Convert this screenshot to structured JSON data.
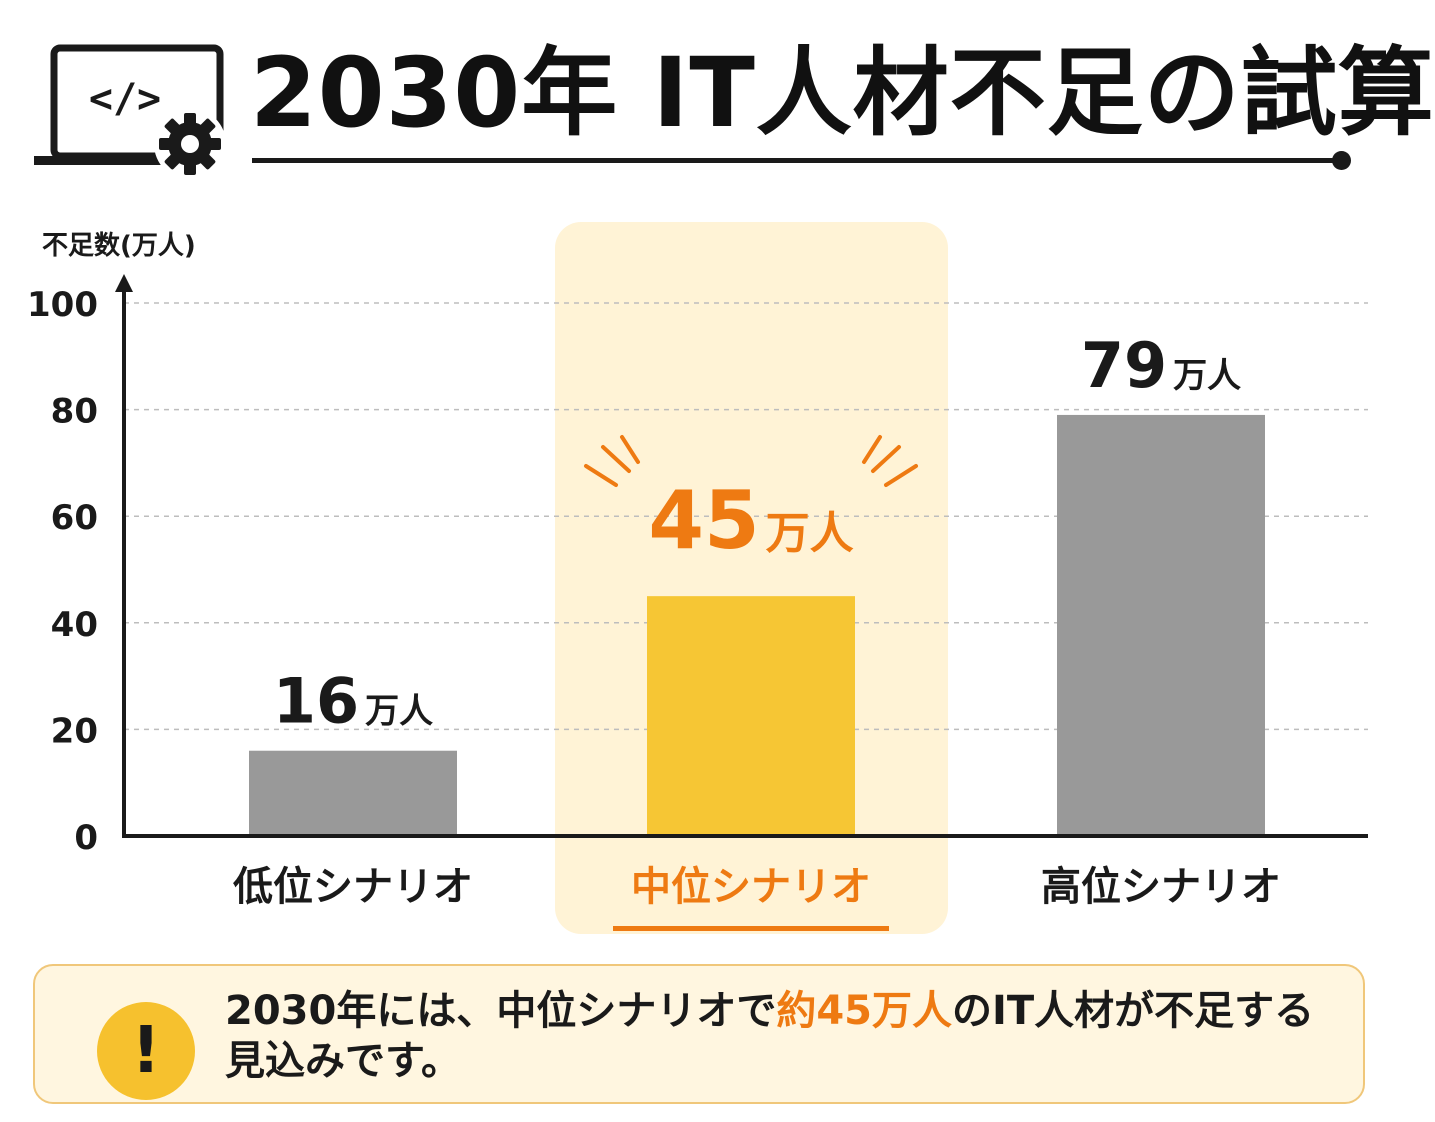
{
  "header": {
    "title": "2030年 IT人材不足の試算",
    "icon": "laptop-code-gear-icon"
  },
  "chart_data": {
    "type": "bar",
    "ylabel": "不足数(万人)",
    "ylim": [
      0,
      100
    ],
    "yticks": [
      "0",
      "20",
      "40",
      "60",
      "80",
      "100"
    ],
    "grid": "horizontal-dashed",
    "categories": [
      "低位シナリオ",
      "中位シナリオ",
      "高位シナリオ"
    ],
    "values": [
      16,
      45,
      79
    ],
    "data_labels": [
      {
        "number": "16",
        "unit": "万人"
      },
      {
        "number": "45",
        "unit": "万人"
      },
      {
        "number": "79",
        "unit": "万人"
      }
    ],
    "highlight_index": 1,
    "colors": {
      "bar_default": "#999999",
      "bar_highlight": "#f6c634",
      "highlight_text": "#ee7a12",
      "highlight_background": "#fff3d6"
    }
  },
  "note": {
    "icon": "exclamation-icon",
    "text_before": "2030年には、中位シナリオで",
    "text_highlight": "約45万人",
    "text_after": "のIT人材が不足する見込みです。"
  }
}
